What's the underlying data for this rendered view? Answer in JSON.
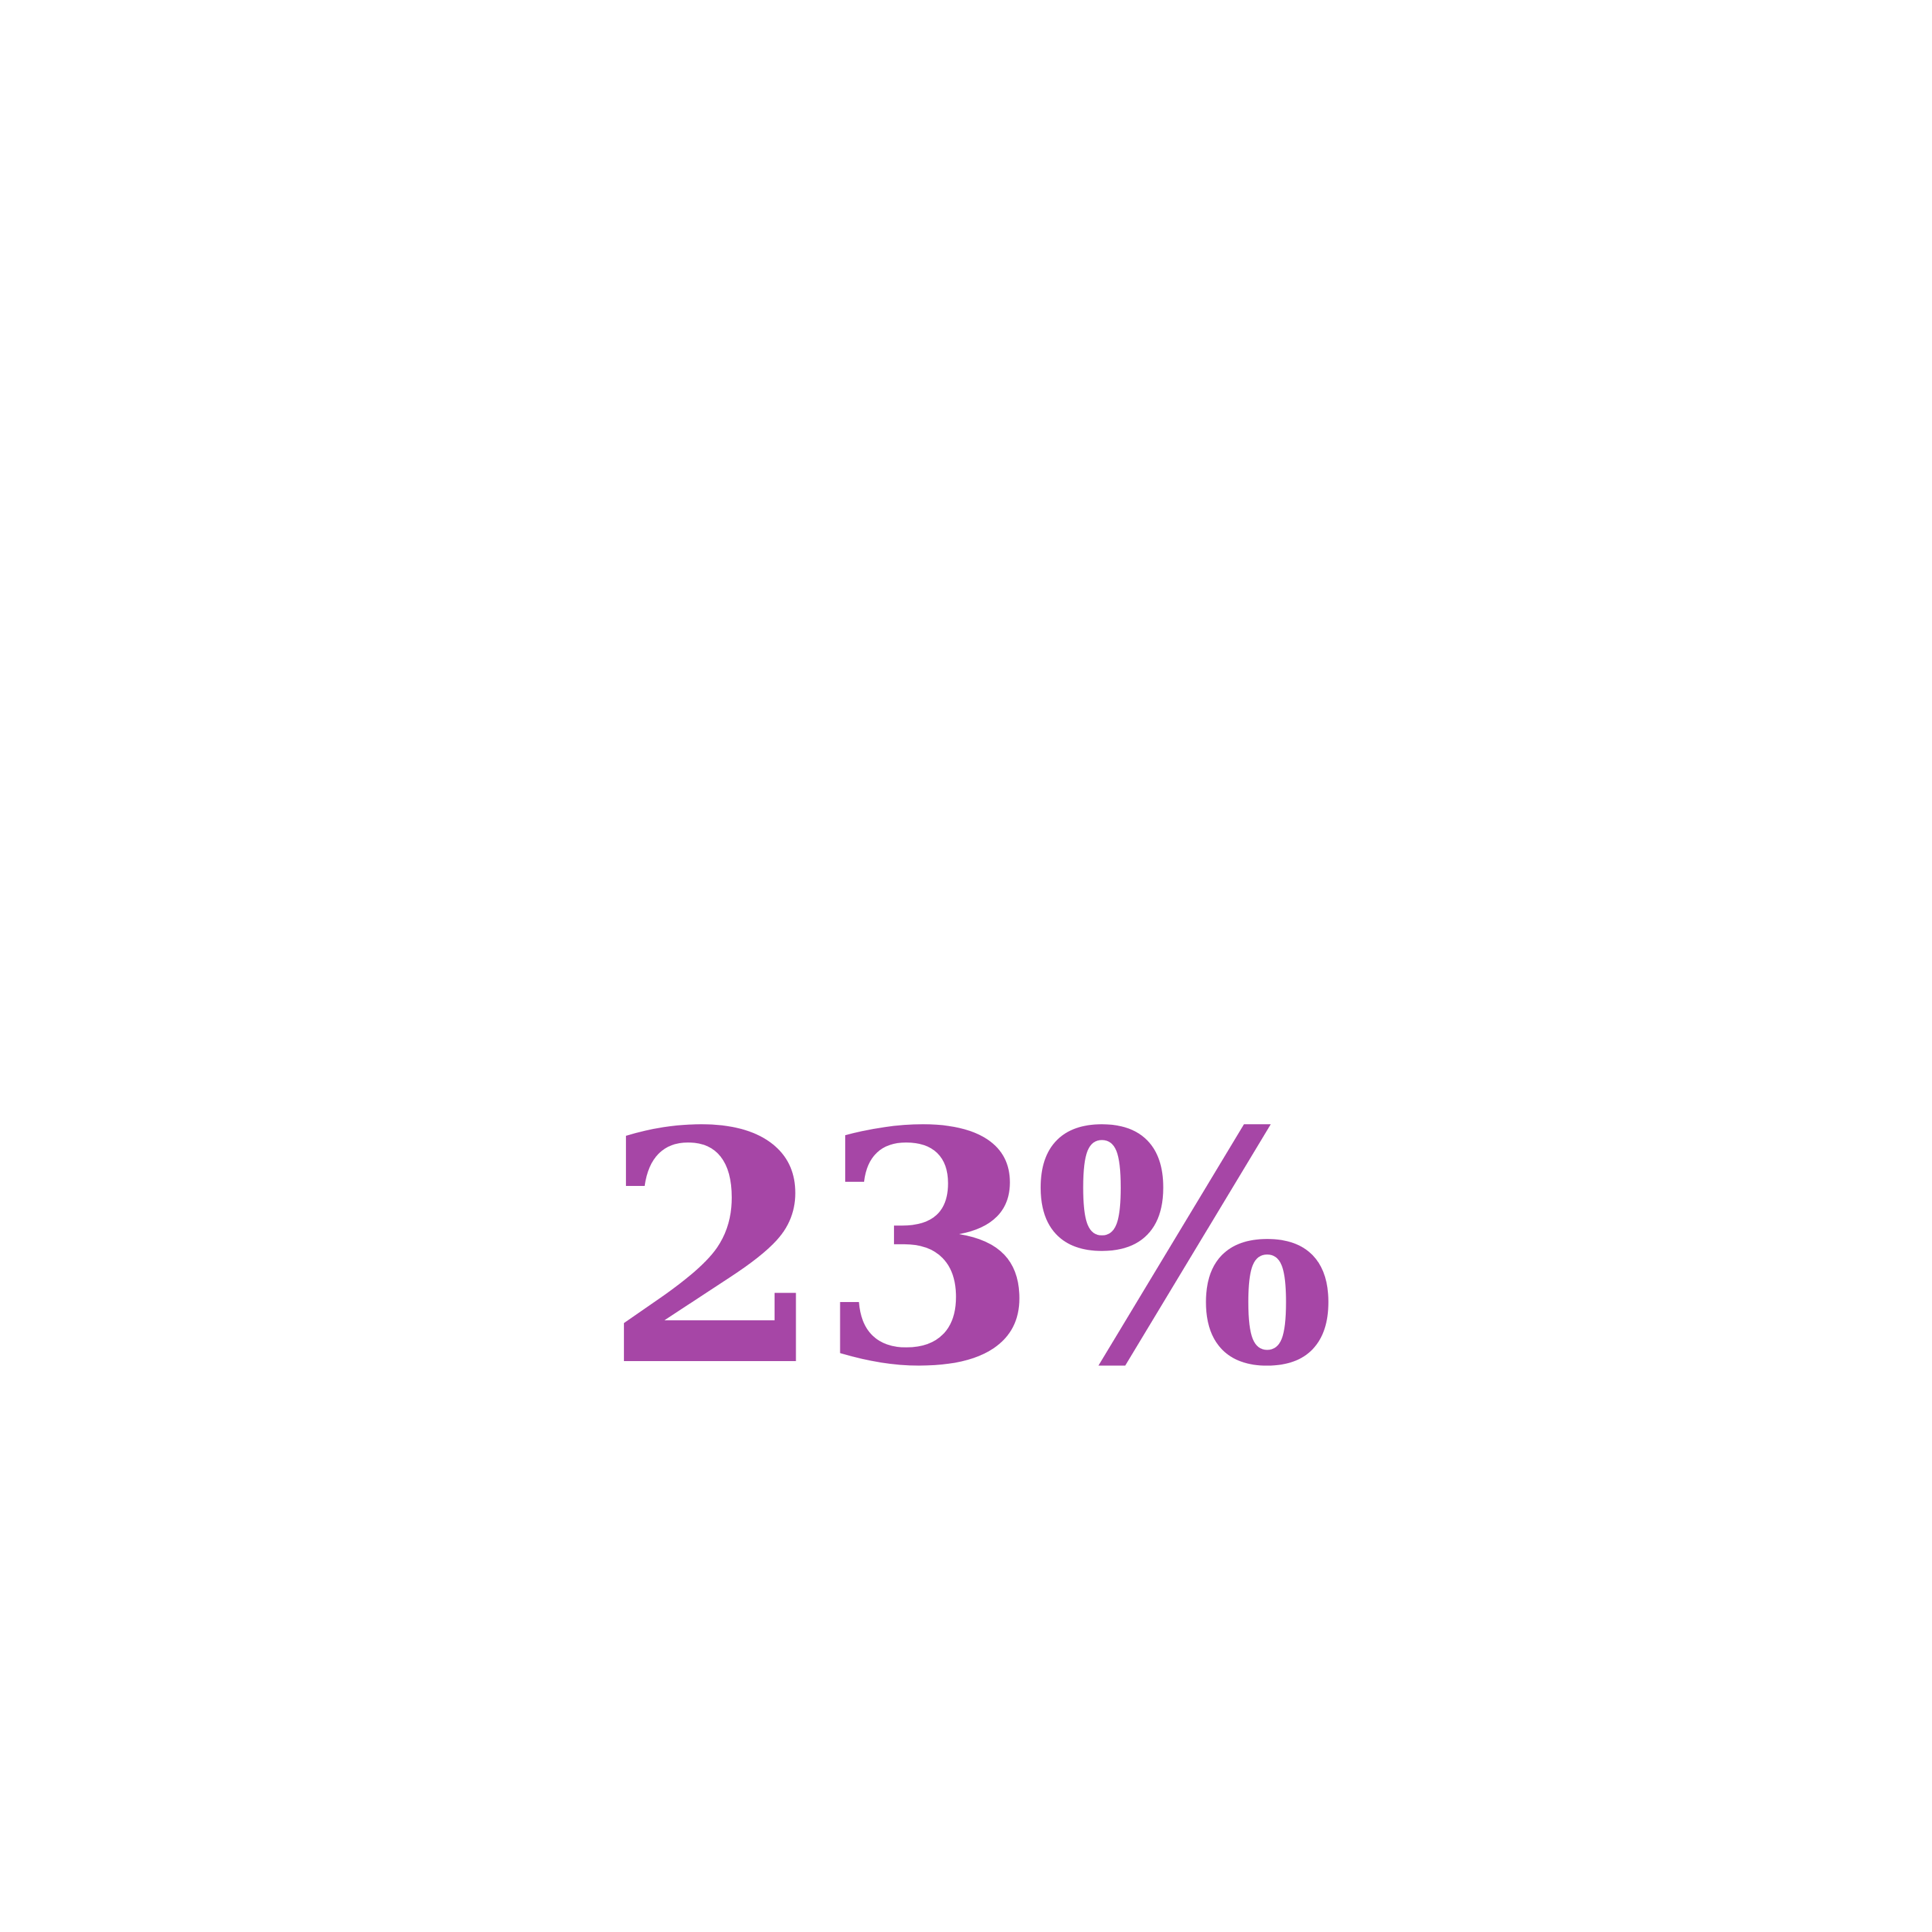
{
  "stat": {
    "value": "23%",
    "color": "#A646A6"
  }
}
